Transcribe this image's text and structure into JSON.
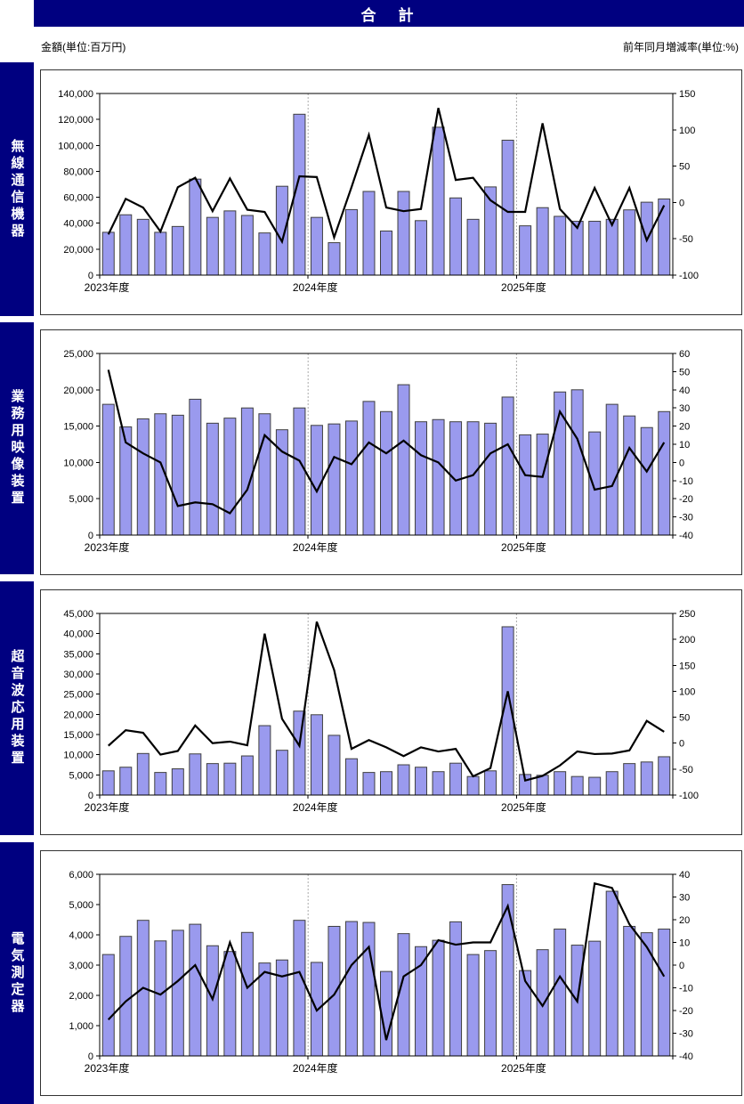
{
  "page": {
    "title": "合　計",
    "amount_unit_label": "金額(単位:百万円)",
    "rate_unit_label": "前年同月増減率(単位:%)"
  },
  "colors": {
    "navy": "#000080",
    "bar_fill": "#9A9AEE",
    "bar_border": "#404040",
    "line": "#000000",
    "divider": "#aaaaaa",
    "axis": "#000000"
  },
  "x_axis": {
    "labels": [
      "2023年度",
      "2024年度",
      "2025年度"
    ],
    "months_per_year": [
      12,
      12,
      9
    ]
  },
  "chart_data": [
    {
      "type": "bar+line",
      "sidebar_label": "無線通信機器",
      "title": "無線通信機器",
      "bar_series": "金額(百万円)",
      "line_series": "前年同月増減率(%)",
      "left_axis": {
        "min": 0,
        "max": 140000,
        "step": 20000
      },
      "right_axis": {
        "min": -100,
        "max": 150,
        "step": 50
      },
      "bars": [
        33000,
        46500,
        43000,
        33000,
        37500,
        74000,
        44500,
        49500,
        46000,
        32500,
        68500,
        124000,
        44500,
        25000,
        50500,
        64500,
        34000,
        64500,
        42000,
        114000,
        59500,
        43000,
        68000,
        104000,
        38000,
        52000,
        45300,
        41500,
        41500,
        43000,
        50300,
        56200,
        58700
      ],
      "line": [
        -44,
        5,
        -7,
        -40,
        21,
        34,
        -12,
        33,
        -10,
        -13,
        -54,
        36,
        35,
        -48,
        21,
        93,
        -7,
        -12,
        -9,
        130,
        31,
        34,
        3,
        -13,
        -13,
        109,
        -9,
        -35,
        20,
        -31,
        20,
        -52,
        -4
      ]
    },
    {
      "type": "bar+line",
      "sidebar_label": "業務用映像装置",
      "title": "業務用映像装置",
      "bar_series": "金額(百万円)",
      "line_series": "前年同月増減率(%)",
      "left_axis": {
        "min": 0,
        "max": 25000,
        "step": 5000
      },
      "right_axis": {
        "min": -40,
        "max": 60,
        "step": 10
      },
      "bars": [
        18000,
        14900,
        16000,
        16700,
        16500,
        18700,
        15400,
        16100,
        17500,
        16700,
        14500,
        17500,
        15100,
        15300,
        15700,
        18400,
        17000,
        20700,
        15600,
        15900,
        15600,
        15600,
        15400,
        19000,
        13800,
        13900,
        19700,
        20000,
        14200,
        18000,
        16400,
        14800,
        17000
      ],
      "line": [
        51,
        11,
        5,
        0,
        -24,
        -22,
        -23,
        -28,
        -15,
        15,
        6,
        1,
        -16,
        3,
        -1,
        11,
        5,
        12,
        4,
        0,
        -10,
        -7,
        5,
        10,
        -7,
        -8,
        28,
        13,
        -15,
        -13,
        8,
        -5,
        11
      ]
    },
    {
      "type": "bar+line",
      "sidebar_label": "超音波応用装置",
      "title": "超音波応用装置",
      "bar_series": "金額(百万円)",
      "line_series": "前年同月増減率(%)",
      "left_axis": {
        "min": 0,
        "max": 45000,
        "step": 5000
      },
      "right_axis": {
        "min": -100,
        "max": 250,
        "step": 50
      },
      "bars": [
        6000,
        6900,
        10300,
        5600,
        6500,
        10200,
        7800,
        7900,
        9700,
        17200,
        11100,
        20800,
        19900,
        14800,
        9000,
        5600,
        5800,
        7500,
        6900,
        5800,
        7900,
        4600,
        6000,
        41700,
        5100,
        4900,
        5800,
        4600,
        4400,
        5800,
        7800,
        8200,
        9500
      ],
      "line": [
        -5,
        25,
        20,
        -22,
        -15,
        34,
        0,
        3,
        -4,
        211,
        47,
        -5,
        234,
        141,
        -11,
        6,
        -8,
        -25,
        -8,
        -16,
        -11,
        -64,
        -48,
        100,
        -72,
        -63,
        -43,
        -16,
        -21,
        -20,
        -14,
        43,
        22
      ]
    },
    {
      "type": "bar+line",
      "sidebar_label": "電気測定器",
      "title": "電気測定器",
      "bar_series": "金額(百万円)",
      "line_series": "前年同月増減率(%)",
      "left_axis": {
        "min": 0,
        "max": 6000,
        "step": 1000
      },
      "right_axis": {
        "min": -40,
        "max": 40,
        "step": 10
      },
      "bars": [
        3350,
        3950,
        4480,
        3800,
        4150,
        4350,
        3640,
        3450,
        4080,
        3070,
        3170,
        4480,
        3090,
        4280,
        4440,
        4410,
        2790,
        4040,
        3610,
        3820,
        4430,
        3350,
        3480,
        5660,
        2820,
        3510,
        4190,
        3660,
        3790,
        5440,
        4280,
        4070,
        4190
      ],
      "line": [
        -24,
        -16,
        -10,
        -13,
        -7,
        0,
        -15,
        10,
        -10,
        -3,
        -5,
        -3,
        -20,
        -13,
        0,
        8,
        -33,
        -5,
        0,
        11,
        9,
        10,
        10,
        26,
        -7,
        -18,
        -5,
        -16,
        36,
        34,
        18,
        8,
        -5
      ]
    }
  ]
}
